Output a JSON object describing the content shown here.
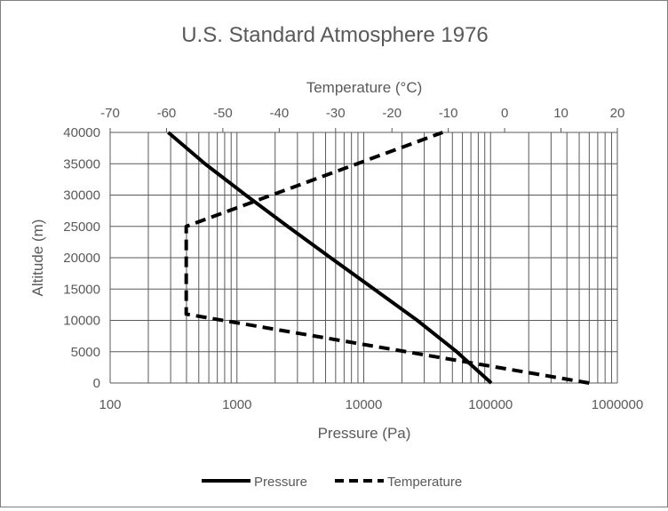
{
  "chart_data": {
    "type": "line",
    "title": "U.S. Standard Atmosphere 1976",
    "xlabel": "Pressure (Pa)",
    "x2label": "Temperature (°C)",
    "ylabel": "Altitude (m)",
    "xscale": "log",
    "xlim": [
      100,
      1000000
    ],
    "x2lim": [
      -70,
      20
    ],
    "ylim": [
      0,
      40000
    ],
    "xticks": [
      "100",
      "1000",
      "10000",
      "100000",
      "1000000"
    ],
    "x2ticks": [
      "-70",
      "-60",
      "-50",
      "-40",
      "-30",
      "-20",
      "-10",
      "0",
      "10",
      "20"
    ],
    "yticks": [
      "0",
      "5000",
      "10000",
      "15000",
      "20000",
      "25000",
      "30000",
      "35000",
      "40000"
    ],
    "grid": true,
    "legend": "bottom",
    "series": [
      {
        "name": "Pressure",
        "axis": "bottom",
        "style": "solid",
        "color": "#000000",
        "points": [
          [
            101325,
            0
          ],
          [
            54020,
            5000
          ],
          [
            26436,
            10000
          ],
          [
            12045,
            15000
          ],
          [
            5475,
            20000
          ],
          [
            2511,
            25000
          ],
          [
            1172,
            30000
          ],
          [
            559,
            35000
          ],
          [
            287,
            40000
          ]
        ]
      },
      {
        "name": "Temperature",
        "axis": "top",
        "style": "dashed",
        "color": "#000000",
        "points": [
          [
            15,
            0
          ],
          [
            -56.5,
            11000
          ],
          [
            -56.5,
            25000
          ],
          [
            -11,
            40000
          ]
        ]
      }
    ]
  }
}
